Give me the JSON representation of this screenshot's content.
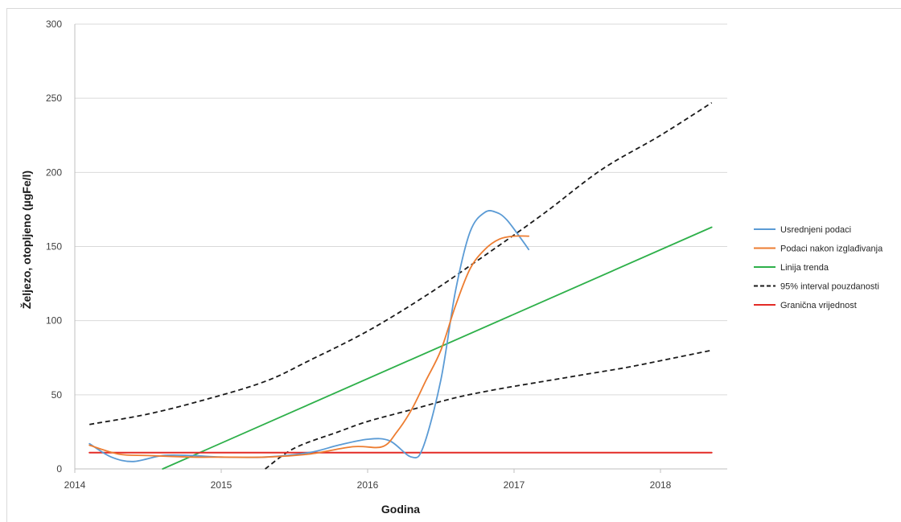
{
  "chart_data": {
    "type": "line",
    "title": "",
    "xlabel": "Godina",
    "ylabel": "Željezo, otopljeno (µgFe/l)",
    "xlim": [
      2014,
      2018.6
    ],
    "ylim": [
      0,
      300
    ],
    "x_ticks": [
      "2014",
      "2015",
      "2016",
      "2017",
      "2018"
    ],
    "y_ticks": [
      "0",
      "50",
      "100",
      "150",
      "200",
      "250",
      "300"
    ],
    "grid": "horizontal",
    "legend_position": "right",
    "series": [
      {
        "name": "Usrednjeni podaci",
        "color": "#5b9bd5",
        "style": "solid",
        "x": [
          2014.1,
          2014.25,
          2014.4,
          2014.6,
          2014.8,
          2015.0,
          2015.3,
          2015.6,
          2015.8,
          2016.0,
          2016.15,
          2016.3,
          2016.38,
          2016.5,
          2016.6,
          2016.7,
          2016.8,
          2016.88,
          2016.95,
          2017.05,
          2017.1
        ],
        "y": [
          17,
          8,
          5,
          9,
          9,
          8,
          8,
          11,
          16,
          20,
          19,
          8,
          15,
          60,
          120,
          160,
          173,
          173,
          168,
          155,
          148
        ]
      },
      {
        "name": "Podaci nakon izglađivanja",
        "color": "#ed7d31",
        "style": "solid",
        "x": [
          2014.1,
          2014.3,
          2014.5,
          2014.8,
          2015.0,
          2015.3,
          2015.6,
          2015.9,
          2016.1,
          2016.2,
          2016.3,
          2016.4,
          2016.5,
          2016.6,
          2016.7,
          2016.8,
          2016.9,
          2017.0,
          2017.1
        ],
        "y": [
          16,
          10,
          9,
          8,
          8,
          8,
          10,
          15,
          15,
          25,
          40,
          60,
          80,
          110,
          135,
          148,
          155,
          157,
          157
        ]
      },
      {
        "name": "Linija trenda",
        "color": "#2eb04a",
        "style": "solid",
        "x": [
          2014.6,
          2018.35
        ],
        "y": [
          0,
          163
        ]
      },
      {
        "name": "95% interval pouzdanosti",
        "color": "#1a1a1a",
        "style": "dashed",
        "x": [
          2014.1,
          2014.5,
          2014.9,
          2015.3,
          2015.6,
          2016.0,
          2016.4,
          2016.8,
          2017.2,
          2017.6,
          2018.0,
          2018.35
        ],
        "y": [
          30,
          37,
          47,
          59,
          73,
          93,
          117,
          144,
          172,
          202,
          225,
          247
        ]
      },
      {
        "name": "",
        "color": "#1a1a1a",
        "style": "dashed",
        "x": [
          2015.3,
          2015.5,
          2015.8,
          2016.0,
          2016.3,
          2016.6,
          2016.9,
          2017.2,
          2017.5,
          2017.8,
          2018.1,
          2018.35
        ],
        "y": [
          0,
          14,
          25,
          32,
          40,
          48,
          54,
          59,
          64,
          69,
          75,
          80
        ]
      },
      {
        "name": "Granična vrijednost",
        "color": "#e32b26",
        "style": "solid",
        "x": [
          2014.1,
          2018.35
        ],
        "y": [
          11,
          11
        ]
      }
    ]
  }
}
